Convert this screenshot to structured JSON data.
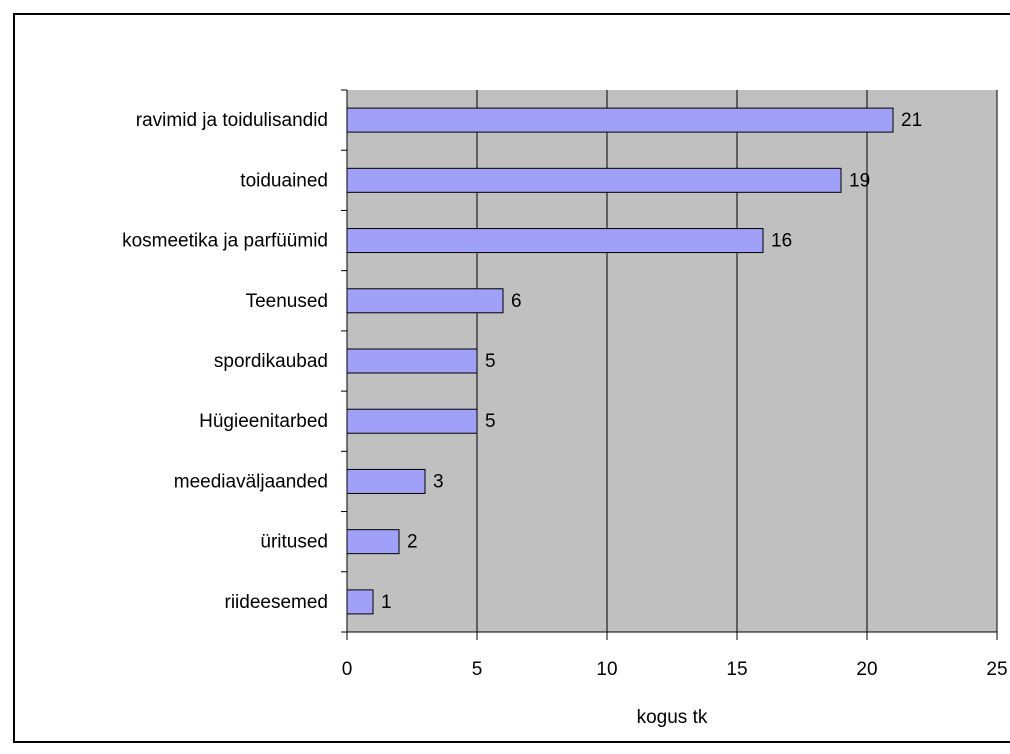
{
  "chart_data": {
    "type": "bar",
    "orientation": "horizontal",
    "x_label": "kogus tk",
    "categories": [
      "ravimid ja toidulisandid",
      "toiduained",
      "kosmeetika ja parfüümid",
      "Teenused",
      "spordikaubad",
      "Hügieenitarbed",
      "meediaväljaanded",
      "üritused",
      "riideesemed"
    ],
    "values": [
      21,
      19,
      16,
      6,
      5,
      5,
      3,
      2,
      1
    ],
    "color": "#a0a0f8",
    "xlim": [
      0,
      25
    ],
    "xticks": [
      0,
      5,
      10,
      15,
      20,
      25
    ],
    "grid": true
  }
}
